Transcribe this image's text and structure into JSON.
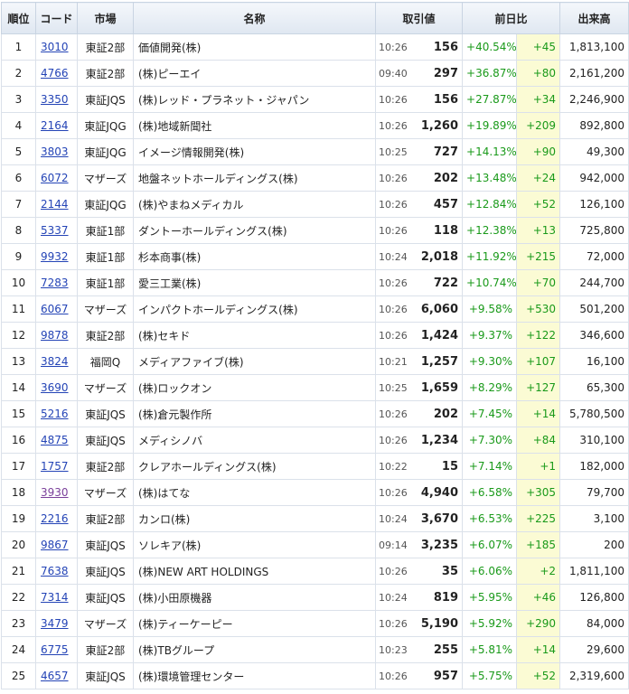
{
  "headers": {
    "rank": "順位",
    "code": "コード",
    "market": "市場",
    "name": "名称",
    "price": "取引値",
    "change": "前日比",
    "volume": "出来高"
  },
  "rows": [
    {
      "rank": "1",
      "code": "3010",
      "market": "東証2部",
      "name": "価値開発(株)",
      "time": "10:26",
      "price": "156",
      "pct": "+40.54%",
      "diff": "+45",
      "volume": "1,813,100"
    },
    {
      "rank": "2",
      "code": "4766",
      "market": "東証2部",
      "name": "(株)ピーエイ",
      "time": "09:40",
      "price": "297",
      "pct": "+36.87%",
      "diff": "+80",
      "volume": "2,161,200"
    },
    {
      "rank": "3",
      "code": "3350",
      "market": "東証JQS",
      "name": "(株)レッド・プラネット・ジャパン",
      "time": "10:26",
      "price": "156",
      "pct": "+27.87%",
      "diff": "+34",
      "volume": "2,246,900"
    },
    {
      "rank": "4",
      "code": "2164",
      "market": "東証JQG",
      "name": "(株)地域新聞社",
      "time": "10:26",
      "price": "1,260",
      "pct": "+19.89%",
      "diff": "+209",
      "volume": "892,800"
    },
    {
      "rank": "5",
      "code": "3803",
      "market": "東証JQG",
      "name": "イメージ情報開発(株)",
      "time": "10:25",
      "price": "727",
      "pct": "+14.13%",
      "diff": "+90",
      "volume": "49,300"
    },
    {
      "rank": "6",
      "code": "6072",
      "market": "マザーズ",
      "name": "地盤ネットホールディングス(株)",
      "time": "10:26",
      "price": "202",
      "pct": "+13.48%",
      "diff": "+24",
      "volume": "942,000"
    },
    {
      "rank": "7",
      "code": "2144",
      "market": "東証JQG",
      "name": "(株)やまねメディカル",
      "time": "10:26",
      "price": "457",
      "pct": "+12.84%",
      "diff": "+52",
      "volume": "126,100"
    },
    {
      "rank": "8",
      "code": "5337",
      "market": "東証1部",
      "name": "ダントーホールディングス(株)",
      "time": "10:26",
      "price": "118",
      "pct": "+12.38%",
      "diff": "+13",
      "volume": "725,800"
    },
    {
      "rank": "9",
      "code": "9932",
      "market": "東証1部",
      "name": "杉本商事(株)",
      "time": "10:24",
      "price": "2,018",
      "pct": "+11.92%",
      "diff": "+215",
      "volume": "72,000"
    },
    {
      "rank": "10",
      "code": "7283",
      "market": "東証1部",
      "name": "愛三工業(株)",
      "time": "10:26",
      "price": "722",
      "pct": "+10.74%",
      "diff": "+70",
      "volume": "244,700"
    },
    {
      "rank": "11",
      "code": "6067",
      "market": "マザーズ",
      "name": "インパクトホールディングス(株)",
      "time": "10:26",
      "price": "6,060",
      "pct": "+9.58%",
      "diff": "+530",
      "volume": "501,200"
    },
    {
      "rank": "12",
      "code": "9878",
      "market": "東証2部",
      "name": "(株)セキド",
      "time": "10:26",
      "price": "1,424",
      "pct": "+9.37%",
      "diff": "+122",
      "volume": "346,600"
    },
    {
      "rank": "13",
      "code": "3824",
      "market": "福岡Q",
      "name": "メディアファイブ(株)",
      "time": "10:21",
      "price": "1,257",
      "pct": "+9.30%",
      "diff": "+107",
      "volume": "16,100"
    },
    {
      "rank": "14",
      "code": "3690",
      "market": "マザーズ",
      "name": "(株)ロックオン",
      "time": "10:25",
      "price": "1,659",
      "pct": "+8.29%",
      "diff": "+127",
      "volume": "65,300"
    },
    {
      "rank": "15",
      "code": "5216",
      "market": "東証JQS",
      "name": "(株)倉元製作所",
      "time": "10:26",
      "price": "202",
      "pct": "+7.45%",
      "diff": "+14",
      "volume": "5,780,500"
    },
    {
      "rank": "16",
      "code": "4875",
      "market": "東証JQS",
      "name": "メディシノバ",
      "time": "10:26",
      "price": "1,234",
      "pct": "+7.30%",
      "diff": "+84",
      "volume": "310,100"
    },
    {
      "rank": "17",
      "code": "1757",
      "market": "東証2部",
      "name": "クレアホールディングス(株)",
      "time": "10:22",
      "price": "15",
      "pct": "+7.14%",
      "diff": "+1",
      "volume": "182,000"
    },
    {
      "rank": "18",
      "code": "3930",
      "market": "マザーズ",
      "name": "(株)はてな",
      "time": "10:26",
      "price": "4,940",
      "pct": "+6.58%",
      "diff": "+305",
      "volume": "79,700",
      "visited": true
    },
    {
      "rank": "19",
      "code": "2216",
      "market": "東証2部",
      "name": "カンロ(株)",
      "time": "10:24",
      "price": "3,670",
      "pct": "+6.53%",
      "diff": "+225",
      "volume": "3,100"
    },
    {
      "rank": "20",
      "code": "9867",
      "market": "東証JQS",
      "name": "ソレキア(株)",
      "time": "09:14",
      "price": "3,235",
      "pct": "+6.07%",
      "diff": "+185",
      "volume": "200"
    },
    {
      "rank": "21",
      "code": "7638",
      "market": "東証JQS",
      "name": "(株)NEW ART HOLDINGS",
      "time": "10:26",
      "price": "35",
      "pct": "+6.06%",
      "diff": "+2",
      "volume": "1,811,100"
    },
    {
      "rank": "22",
      "code": "7314",
      "market": "東証JQS",
      "name": "(株)小田原機器",
      "time": "10:24",
      "price": "819",
      "pct": "+5.95%",
      "diff": "+46",
      "volume": "126,800"
    },
    {
      "rank": "23",
      "code": "3479",
      "market": "マザーズ",
      "name": "(株)ティーケーピー",
      "time": "10:26",
      "price": "5,190",
      "pct": "+5.92%",
      "diff": "+290",
      "volume": "84,000"
    },
    {
      "rank": "24",
      "code": "6775",
      "market": "東証2部",
      "name": "(株)TBグループ",
      "time": "10:23",
      "price": "255",
      "pct": "+5.81%",
      "diff": "+14",
      "volume": "29,600"
    },
    {
      "rank": "25",
      "code": "4657",
      "market": "東証JQS",
      "name": "(株)環境管理センター",
      "time": "10:26",
      "price": "957",
      "pct": "+5.75%",
      "diff": "+52",
      "volume": "2,319,600"
    }
  ],
  "colors": {
    "positive": "#1a9a1a",
    "link": "#2444b6",
    "link_visited": "#7a3f9a",
    "diff_highlight": "#fbfbd4",
    "header_bg": "#dfe7f1"
  }
}
